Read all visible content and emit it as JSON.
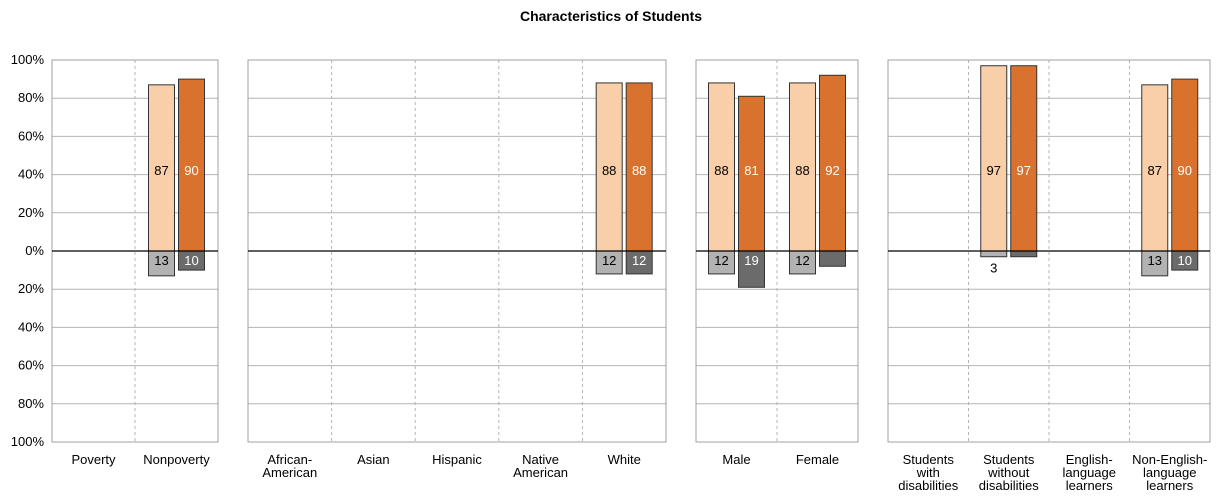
{
  "chart_data": {
    "type": "bar",
    "title": "Characteristics of Students",
    "y_tick_labels": [
      "100%",
      "80%",
      "60%",
      "40%",
      "20%",
      "0%",
      "20%",
      "40%",
      "60%",
      "80%",
      "100%"
    ],
    "ylim": [
      -100,
      100
    ],
    "grid": true,
    "colors": {
      "upper_light": "#f8cfa8",
      "upper_dark": "#d8722e",
      "lower_light": "#b2b2b2",
      "lower_dark": "#6b6b6b",
      "grid": "#b4b4b4",
      "panel_border": "#a0a0a0"
    },
    "groups": [
      {
        "name": "poverty-status",
        "categories": [
          {
            "label": [
              "Poverty"
            ],
            "upper": [
              null,
              null
            ],
            "lower": [
              null,
              null
            ],
            "lower_labels": [
              null,
              null
            ]
          },
          {
            "label": [
              "Nonpoverty"
            ],
            "upper": [
              87,
              90
            ],
            "lower": [
              13,
              10
            ],
            "lower_labels": [
              "13",
              "10"
            ]
          }
        ]
      },
      {
        "name": "race-ethnicity",
        "categories": [
          {
            "label": [
              "African-",
              "American"
            ],
            "upper": [
              null,
              null
            ],
            "lower": [
              null,
              null
            ],
            "lower_labels": [
              null,
              null
            ]
          },
          {
            "label": [
              "Asian"
            ],
            "upper": [
              null,
              null
            ],
            "lower": [
              null,
              null
            ],
            "lower_labels": [
              null,
              null
            ]
          },
          {
            "label": [
              "Hispanic"
            ],
            "upper": [
              null,
              null
            ],
            "lower": [
              null,
              null
            ],
            "lower_labels": [
              null,
              null
            ]
          },
          {
            "label": [
              "Native",
              "American"
            ],
            "upper": [
              null,
              null
            ],
            "lower": [
              null,
              null
            ],
            "lower_labels": [
              null,
              null
            ]
          },
          {
            "label": [
              "White"
            ],
            "upper": [
              88,
              88
            ],
            "lower": [
              12,
              12
            ],
            "lower_labels": [
              "12",
              "12"
            ]
          }
        ]
      },
      {
        "name": "gender",
        "categories": [
          {
            "label": [
              "Male"
            ],
            "upper": [
              88,
              81
            ],
            "lower": [
              12,
              19
            ],
            "lower_labels": [
              "12",
              "19"
            ]
          },
          {
            "label": [
              "Female"
            ],
            "upper": [
              88,
              92
            ],
            "lower": [
              12,
              8
            ],
            "lower_labels": [
              "12",
              null
            ]
          }
        ]
      },
      {
        "name": "disability-language",
        "categories": [
          {
            "label": [
              "Students",
              "with",
              "disabilities"
            ],
            "upper": [
              null,
              null
            ],
            "lower": [
              null,
              null
            ],
            "lower_labels": [
              null,
              null
            ]
          },
          {
            "label": [
              "Students",
              "without",
              "disabilities"
            ],
            "upper": [
              97,
              97
            ],
            "lower": [
              3,
              3
            ],
            "lower_labels": [
              "3",
              null
            ]
          },
          {
            "label": [
              "English-",
              "language",
              "learners"
            ],
            "upper": [
              null,
              null
            ],
            "lower": [
              null,
              null
            ],
            "lower_labels": [
              null,
              null
            ]
          },
          {
            "label": [
              "Non-English-",
              "language",
              "learners"
            ],
            "upper": [
              87,
              90
            ],
            "lower": [
              13,
              10
            ],
            "lower_labels": [
              "13",
              "10"
            ]
          }
        ]
      }
    ]
  }
}
